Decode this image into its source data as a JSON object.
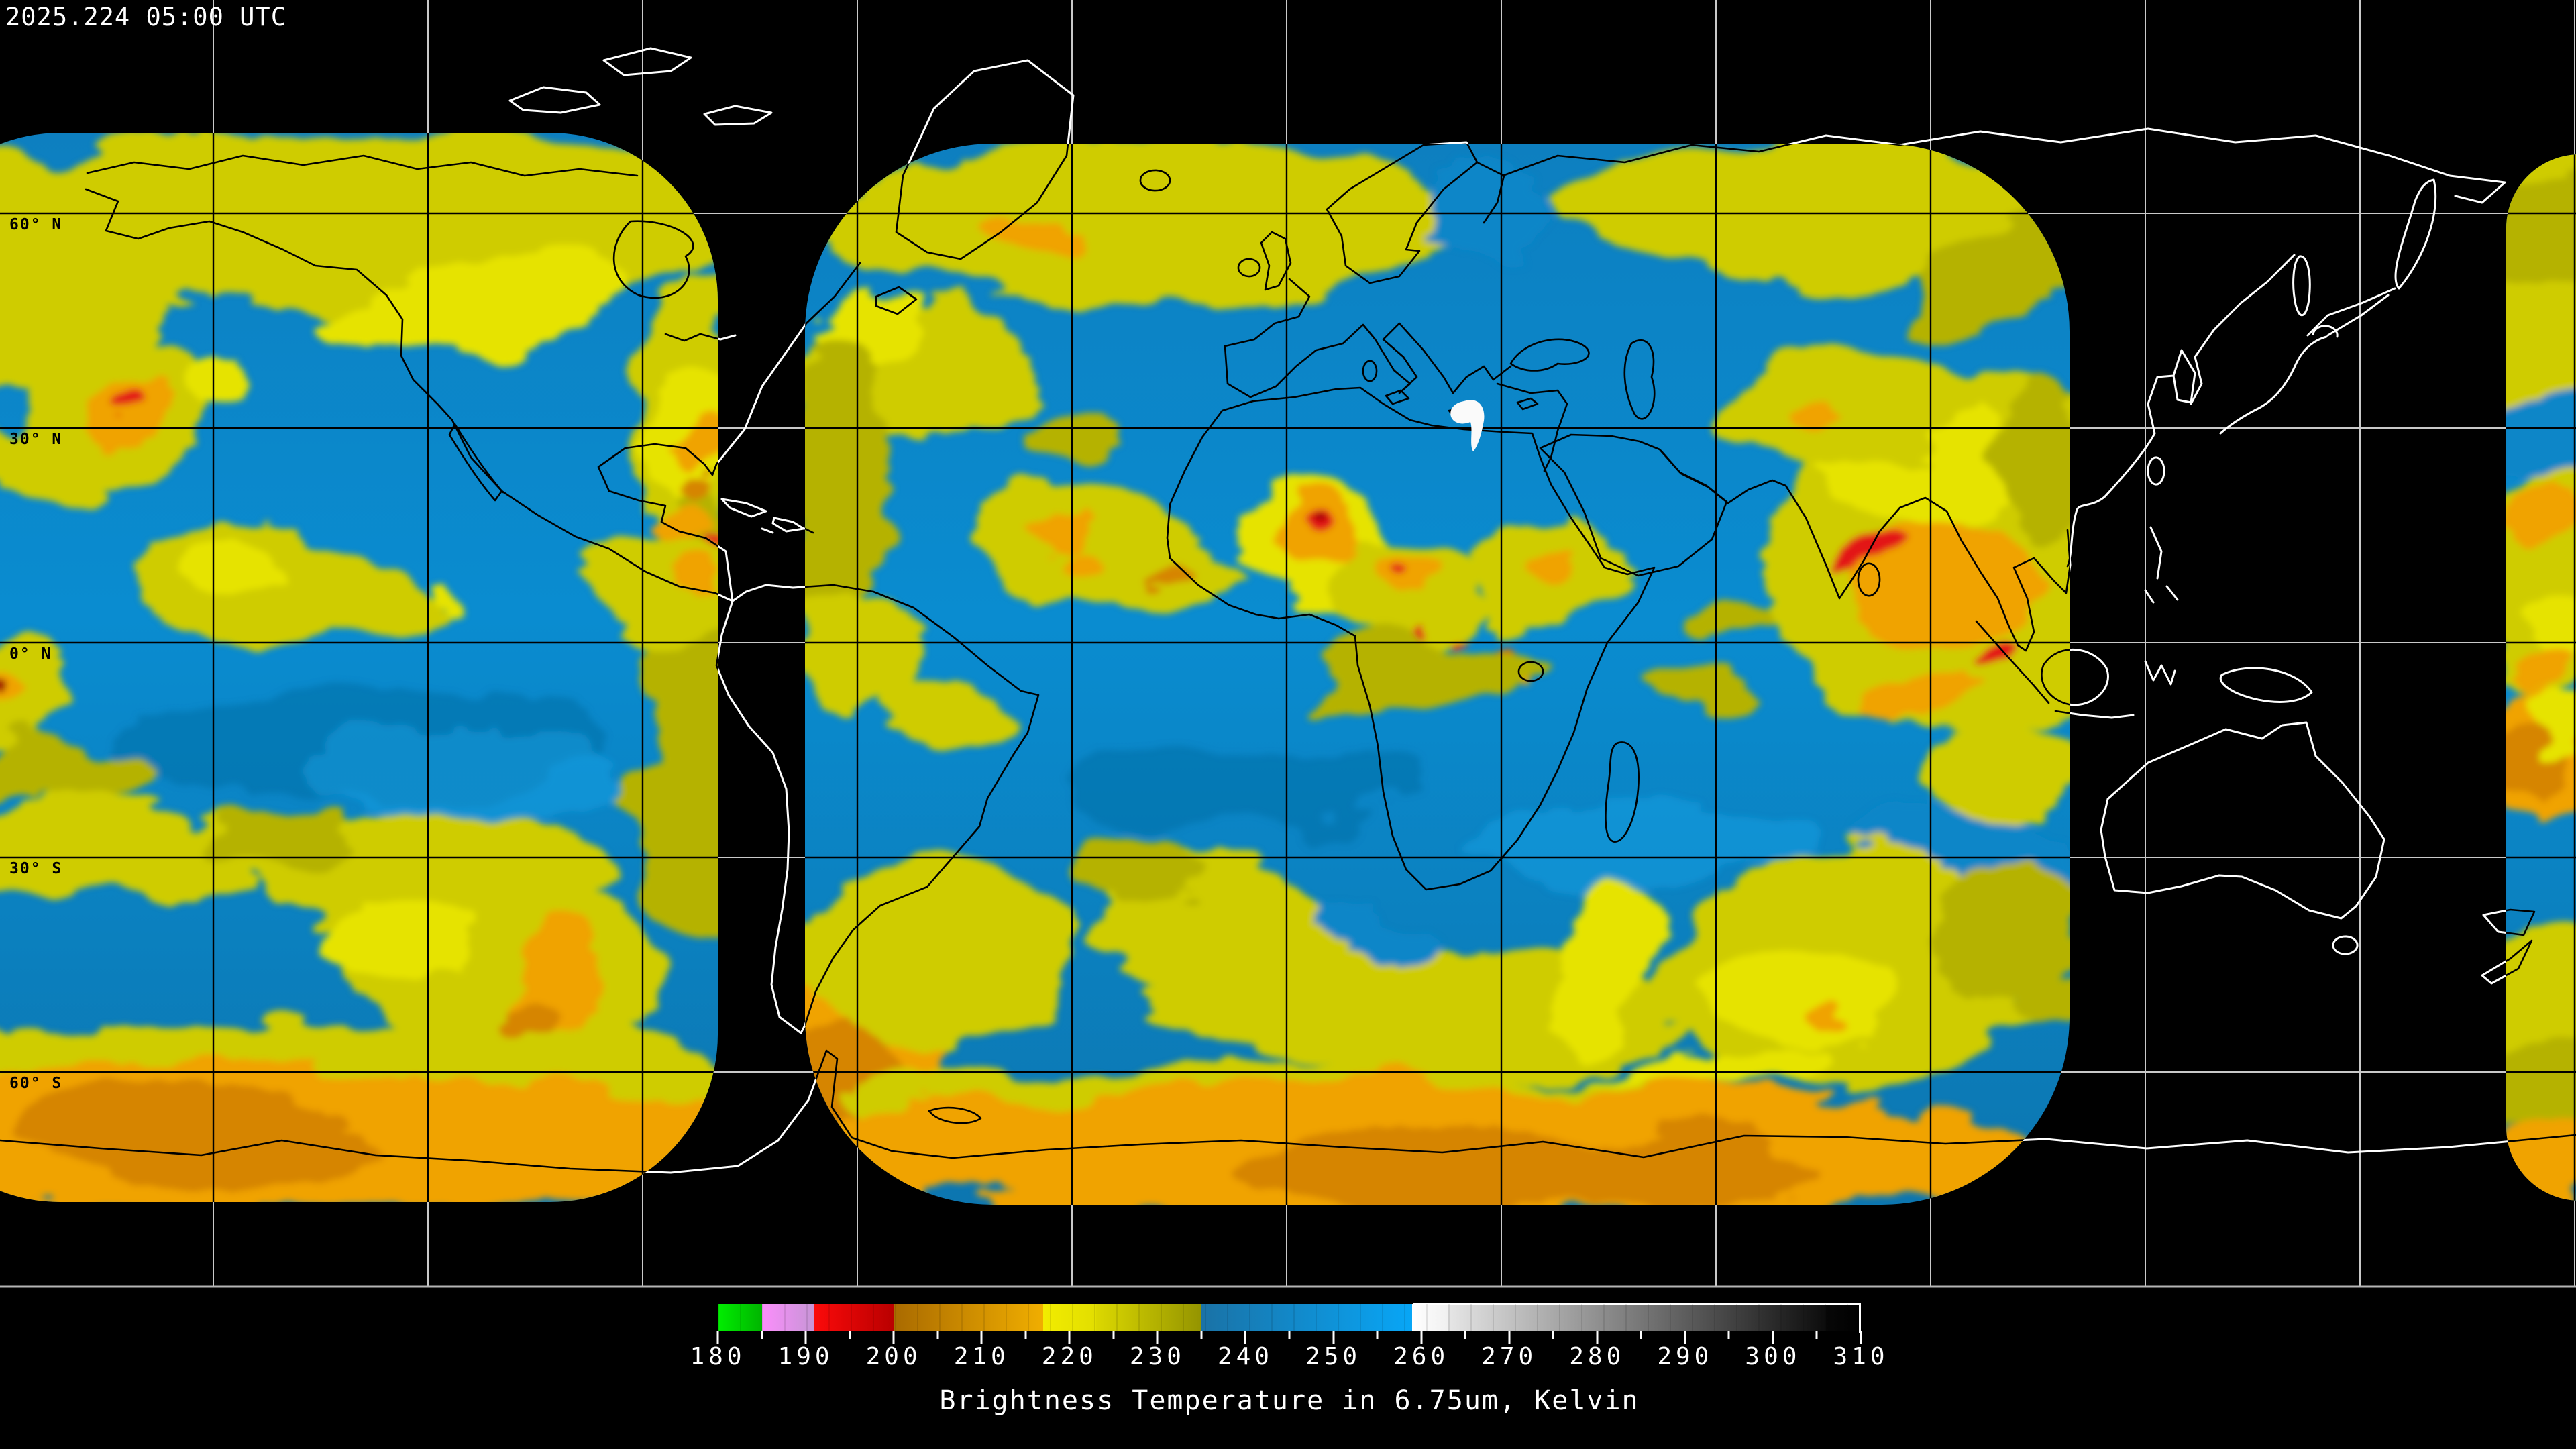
{
  "header": {
    "timestamp": "2025.224 05:00 UTC"
  },
  "map": {
    "latitude_labels": [
      "60° N",
      "30° N",
      "0° N",
      "30° S",
      "60° S"
    ]
  },
  "colorbar": {
    "min": 180,
    "max": 310,
    "tick_step": 10,
    "minor_tick_step": 5,
    "tick_labels": [
      "180",
      "190",
      "200",
      "210",
      "220",
      "230",
      "240",
      "250",
      "260",
      "270",
      "280",
      "290",
      "300",
      "310"
    ],
    "caption": "Brightness Temperature in 6.75um, Kelvin",
    "segments": [
      {
        "from": 180,
        "to": 185,
        "start": "#00ee00",
        "end": "#00b400"
      },
      {
        "from": 185,
        "to": 191,
        "start": "#fb8efb",
        "end": "#c795d6"
      },
      {
        "from": 191,
        "to": 200,
        "start": "#fb0a0a",
        "end": "#b90000"
      },
      {
        "from": 200,
        "to": 217,
        "start": "#a96a00",
        "end": "#f0ae00"
      },
      {
        "from": 217,
        "to": 223,
        "start": "#f2ec00",
        "end": "#e2de00"
      },
      {
        "from": 223,
        "to": 235,
        "start": "#dcd800",
        "end": "#949400"
      },
      {
        "from": 235,
        "to": 259,
        "start": "#1a72a6",
        "end": "#08a6f6"
      },
      {
        "from": 259,
        "to": 263,
        "start": "#ffffff",
        "end": "#f0f0f0"
      },
      {
        "from": 263,
        "to": 306,
        "start": "#e6e6e6",
        "end": "#0c0c0c"
      },
      {
        "from": 306,
        "to": 310,
        "start": "#070707",
        "end": "#000000"
      }
    ]
  }
}
